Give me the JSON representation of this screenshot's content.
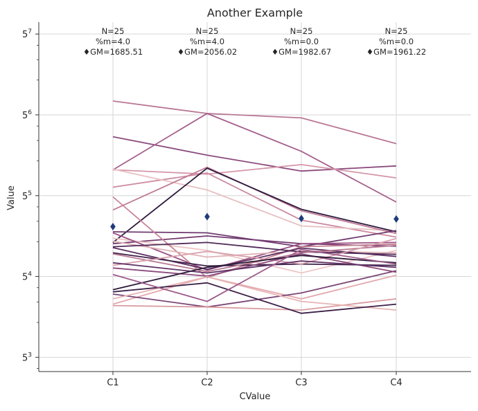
{
  "chart_data": {
    "type": "line",
    "title": "Another Example",
    "xlabel": "CValue",
    "ylabel": "Value",
    "y_scale": "log base 5",
    "ylim": [
      94,
      99000
    ],
    "grid": true,
    "categories": [
      "C1",
      "C2",
      "C3",
      "C4"
    ],
    "y_ticks": [
      {
        "base": "5",
        "exp": "3",
        "value": 125
      },
      {
        "base": "5",
        "exp": "4",
        "value": 625
      },
      {
        "base": "5",
        "exp": "5",
        "value": 3125
      },
      {
        "base": "5",
        "exp": "6",
        "value": 15625
      },
      {
        "base": "5",
        "exp": "7",
        "value": 78125
      }
    ],
    "annotations": [
      {
        "category": "C1",
        "n": "N=25",
        "pct": "%m=4.0",
        "gm": "♦GM=1685.51"
      },
      {
        "category": "C2",
        "n": "N=25",
        "pct": "%m=4.0",
        "gm": "♦GM=2056.02"
      },
      {
        "category": "C3",
        "n": "N=25",
        "pct": "%m=0.0",
        "gm": "♦GM=1982.67"
      },
      {
        "category": "C4",
        "n": "N=25",
        "pct": "%m=0.0",
        "gm": "♦GM=1961.22"
      }
    ],
    "geometric_means": [
      1685.51,
      2056.02,
      1982.67,
      1961.22
    ],
    "marker_color": "#1f3b7a",
    "series": [
      {
        "color": "#b97694",
        "values": [
          20570,
          16050,
          14700,
          8800
        ]
      },
      {
        "color": "#8a4a7c",
        "values": [
          10100,
          7000,
          5100,
          5650
        ]
      },
      {
        "color": "#a45f8c",
        "values": [
          5220,
          16050,
          7550,
          2750
        ]
      },
      {
        "color": "#d496a8",
        "values": [
          5230,
          4800,
          5800,
          4450
        ]
      },
      {
        "color": "#cc8aa1",
        "values": [
          3700,
          4900,
          1920,
          1370
        ]
      },
      {
        "color": "#e7c0c2",
        "values": [
          5300,
          3500,
          1710,
          1550
        ]
      },
      {
        "color": "#c07a96",
        "values": [
          2350,
          5500,
          2310,
          1470
        ]
      },
      {
        "color": "#2e1a3e",
        "values": [
          1230,
          5400,
          2380,
          1520
        ]
      },
      {
        "color": "#6e3a6f",
        "values": [
          1520,
          1490,
          1130,
          1560
        ]
      },
      {
        "color": "#743b70",
        "values": [
          1200,
          1400,
          1200,
          1140
        ]
      },
      {
        "color": "#ecc5c4",
        "values": [
          1340,
          1050,
          670,
          1050
        ]
      },
      {
        "color": "#9b5184",
        "values": [
          1490,
          710,
          1200,
          1230
        ]
      },
      {
        "color": "#c78495",
        "values": [
          3050,
          610,
          1130,
          1190
        ]
      },
      {
        "color": "#e0b3b6",
        "values": [
          1260,
          920,
          1040,
          1000
        ]
      },
      {
        "color": "#5a2e60",
        "values": [
          1110,
          720,
          1100,
          930
        ]
      },
      {
        "color": "#3d2048",
        "values": [
          1000,
          770,
          800,
          780
        ]
      },
      {
        "color": "#4f2a58",
        "values": [
          1130,
          1230,
          1020,
          970
        ]
      },
      {
        "color": "#b87a93",
        "values": [
          980,
          690,
          1000,
          1160
        ]
      },
      {
        "color": "#d8a1ad",
        "values": [
          780,
          1030,
          800,
          1330
        ]
      },
      {
        "color": "#8c4a7d",
        "values": [
          740,
          630,
          980,
          680
        ]
      },
      {
        "color": "#5f3266",
        "values": [
          820,
          670,
          850,
          750
        ]
      },
      {
        "color": "#2b1a38",
        "values": [
          480,
          750,
          950,
          820
        ]
      },
      {
        "color": "#e3a8ad",
        "values": [
          360,
          620,
          400,
          640
        ]
      },
      {
        "color": "#7a4576",
        "values": [
          440,
          340,
          450,
          700
        ]
      },
      {
        "color": "#d89a9f",
        "values": [
          350,
          340,
          320,
          400
        ]
      },
      {
        "color": "#e7b4b4",
        "values": [
          400,
          620,
          380,
          320
        ]
      },
      {
        "color": "#3a1f47",
        "values": [
          460,
          550,
          300,
          360
        ]
      },
      {
        "color": "#9d5a8a",
        "values": [
          650,
          380,
          1070,
          800
        ]
      }
    ]
  }
}
